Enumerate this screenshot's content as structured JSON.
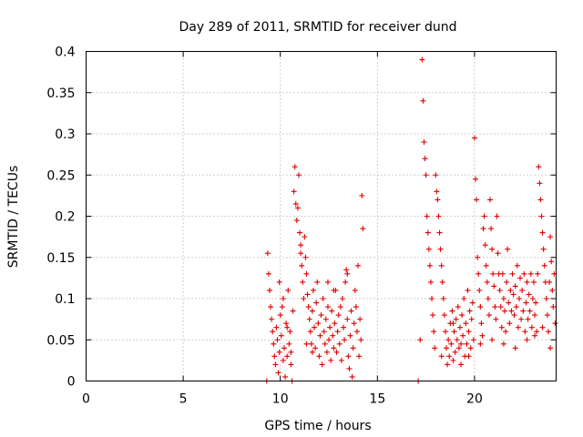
{
  "chart_data": {
    "type": "scatter",
    "title": "Day 289 of 2011, SRMTID for receiver dund",
    "xlabel": "GPS time / hours",
    "ylabel": "SRMTID / TECUs",
    "xlim": [
      0,
      24.2
    ],
    "ylim": [
      0,
      0.4
    ],
    "xticks": [
      0,
      5,
      10,
      15,
      20
    ],
    "xtick_labels": [
      "0",
      "5",
      "10",
      "15",
      "20"
    ],
    "yticks": [
      0,
      0.05,
      0.1,
      0.15,
      0.2,
      0.25,
      0.3,
      0.35,
      0.4
    ],
    "ytick_labels": [
      "0",
      "0.05",
      "0.1",
      "0.15",
      "0.2",
      "0.25",
      "0.3",
      "0.35",
      "0.4"
    ],
    "grid": true,
    "legend": "none",
    "marker": "plus",
    "series": [
      {
        "name": "SRMTID",
        "color": "#e00000",
        "points": [
          [
            9.3,
            0.0
          ],
          [
            9.35,
            0.155
          ],
          [
            9.4,
            0.13
          ],
          [
            9.45,
            0.11
          ],
          [
            9.5,
            0.09
          ],
          [
            9.55,
            0.075
          ],
          [
            9.6,
            0.06
          ],
          [
            9.65,
            0.045
          ],
          [
            9.7,
            0.03
          ],
          [
            9.75,
            0.02
          ],
          [
            9.8,
            0.065
          ],
          [
            9.85,
            0.05
          ],
          [
            9.9,
            0.01
          ],
          [
            9.95,
            0.035
          ],
          [
            10.0,
            0.08
          ],
          [
            10.05,
            0.055
          ],
          [
            10.1,
            0.09
          ],
          [
            10.15,
            0.025
          ],
          [
            10.2,
            0.04
          ],
          [
            10.25,
            0.005
          ],
          [
            10.3,
            0.07
          ],
          [
            10.35,
            0.03
          ],
          [
            10.4,
            0.11
          ],
          [
            10.45,
            0.045
          ],
          [
            10.5,
            0.06
          ],
          [
            10.55,
            0.02
          ],
          [
            10.6,
            0.0
          ],
          [
            10.65,
            0.085
          ],
          [
            10.7,
            0.23
          ],
          [
            10.75,
            0.26
          ],
          [
            10.8,
            0.215
          ],
          [
            10.85,
            0.195
          ],
          [
            10.9,
            0.21
          ],
          [
            10.95,
            0.25
          ],
          [
            11.0,
            0.18
          ],
          [
            11.05,
            0.165
          ],
          [
            11.1,
            0.14
          ],
          [
            11.15,
            0.12
          ],
          [
            11.2,
            0.1
          ],
          [
            11.25,
            0.175
          ],
          [
            11.3,
            0.15
          ],
          [
            11.35,
            0.13
          ],
          [
            11.4,
            0.105
          ],
          [
            11.45,
            0.09
          ],
          [
            11.5,
            0.075
          ],
          [
            11.55,
            0.06
          ],
          [
            11.6,
            0.045
          ],
          [
            11.65,
            0.085
          ],
          [
            11.7,
            0.11
          ],
          [
            11.75,
            0.065
          ],
          [
            11.8,
            0.04
          ],
          [
            11.85,
            0.095
          ],
          [
            11.9,
            0.12
          ],
          [
            11.95,
            0.07
          ],
          [
            12.0,
            0.03
          ],
          [
            12.05,
            0.055
          ],
          [
            12.1,
            0.08
          ],
          [
            12.15,
            0.02
          ],
          [
            12.2,
            0.1
          ],
          [
            12.25,
            0.06
          ],
          [
            12.3,
            0.045
          ],
          [
            12.35,
            0.075
          ],
          [
            12.4,
            0.035
          ],
          [
            12.45,
            0.09
          ],
          [
            12.5,
            0.05
          ],
          [
            12.55,
            0.065
          ],
          [
            12.6,
            0.025
          ],
          [
            12.65,
            0.085
          ],
          [
            12.7,
            0.055
          ],
          [
            12.75,
            0.04
          ],
          [
            12.8,
            0.07
          ],
          [
            12.85,
            0.11
          ],
          [
            12.9,
            0.035
          ],
          [
            12.95,
            0.06
          ],
          [
            13.0,
            0.08
          ],
          [
            13.05,
            0.045
          ],
          [
            13.1,
            0.09
          ],
          [
            13.15,
            0.025
          ],
          [
            13.2,
            0.1
          ],
          [
            13.25,
            0.065
          ],
          [
            13.3,
            0.05
          ],
          [
            13.35,
            0.12
          ],
          [
            13.4,
            0.135
          ],
          [
            13.45,
            0.075
          ],
          [
            13.5,
            0.03
          ],
          [
            13.55,
            0.015
          ],
          [
            13.6,
            0.055
          ],
          [
            13.65,
            0.085
          ],
          [
            13.7,
            0.005
          ],
          [
            13.75,
            0.04
          ],
          [
            13.8,
            0.07
          ],
          [
            13.85,
            0.11
          ],
          [
            13.9,
            0.09
          ],
          [
            13.95,
            0.06
          ],
          [
            14.0,
            0.14
          ],
          [
            14.05,
            0.03
          ],
          [
            14.1,
            0.075
          ],
          [
            14.15,
            0.05
          ],
          [
            14.2,
            0.225
          ],
          [
            14.25,
            0.185
          ],
          [
            9.95,
            0.12
          ],
          [
            10.15,
            0.1
          ],
          [
            10.35,
            0.065
          ],
          [
            10.55,
            0.035
          ],
          [
            11.05,
            0.155
          ],
          [
            11.35,
            0.045
          ],
          [
            11.65,
            0.035
          ],
          [
            12.45,
            0.12
          ],
          [
            12.75,
            0.11
          ],
          [
            13.45,
            0.13
          ],
          [
            17.1,
            0.0
          ],
          [
            17.2,
            0.05
          ],
          [
            17.3,
            0.39
          ],
          [
            17.35,
            0.34
          ],
          [
            17.4,
            0.29
          ],
          [
            17.45,
            0.27
          ],
          [
            17.5,
            0.25
          ],
          [
            17.55,
            0.2
          ],
          [
            17.6,
            0.18
          ],
          [
            17.65,
            0.16
          ],
          [
            17.7,
            0.14
          ],
          [
            17.75,
            0.12
          ],
          [
            17.8,
            0.1
          ],
          [
            17.85,
            0.08
          ],
          [
            17.9,
            0.06
          ],
          [
            17.95,
            0.04
          ],
          [
            18.0,
            0.25
          ],
          [
            18.05,
            0.23
          ],
          [
            18.1,
            0.22
          ],
          [
            18.15,
            0.2
          ],
          [
            18.2,
            0.18
          ],
          [
            18.25,
            0.16
          ],
          [
            18.3,
            0.14
          ],
          [
            18.35,
            0.12
          ],
          [
            18.4,
            0.1
          ],
          [
            18.45,
            0.08
          ],
          [
            18.5,
            0.06
          ],
          [
            18.55,
            0.04
          ],
          [
            18.6,
            0.02
          ],
          [
            18.65,
            0.05
          ],
          [
            18.7,
            0.03
          ],
          [
            18.75,
            0.07
          ],
          [
            18.8,
            0.045
          ],
          [
            18.85,
            0.085
          ],
          [
            18.9,
            0.025
          ],
          [
            18.95,
            0.06
          ],
          [
            19.0,
            0.035
          ],
          [
            19.05,
            0.075
          ],
          [
            19.1,
            0.05
          ],
          [
            19.15,
            0.09
          ],
          [
            19.2,
            0.04
          ],
          [
            19.25,
            0.065
          ],
          [
            19.3,
            0.02
          ],
          [
            19.35,
            0.08
          ],
          [
            19.4,
            0.055
          ],
          [
            19.45,
            0.1
          ],
          [
            19.5,
            0.03
          ],
          [
            19.55,
            0.07
          ],
          [
            19.6,
            0.045
          ],
          [
            19.65,
            0.11
          ],
          [
            19.7,
            0.06
          ],
          [
            19.75,
            0.085
          ],
          [
            19.8,
            0.04
          ],
          [
            19.85,
            0.075
          ],
          [
            19.9,
            0.095
          ],
          [
            19.95,
            0.05
          ],
          [
            20.0,
            0.295
          ],
          [
            20.05,
            0.245
          ],
          [
            20.1,
            0.22
          ],
          [
            20.15,
            0.15
          ],
          [
            20.2,
            0.13
          ],
          [
            20.25,
            0.11
          ],
          [
            20.3,
            0.09
          ],
          [
            20.35,
            0.07
          ],
          [
            20.4,
            0.055
          ],
          [
            20.45,
            0.185
          ],
          [
            20.5,
            0.2
          ],
          [
            20.55,
            0.165
          ],
          [
            20.6,
            0.14
          ],
          [
            20.65,
            0.12
          ],
          [
            20.7,
            0.1
          ],
          [
            20.75,
            0.08
          ],
          [
            20.8,
            0.22
          ],
          [
            20.85,
            0.185
          ],
          [
            20.9,
            0.16
          ],
          [
            20.95,
            0.13
          ],
          [
            21.0,
            0.115
          ],
          [
            21.05,
            0.09
          ],
          [
            21.1,
            0.075
          ],
          [
            21.15,
            0.2
          ],
          [
            21.2,
            0.155
          ],
          [
            21.25,
            0.13
          ],
          [
            21.3,
            0.11
          ],
          [
            21.35,
            0.09
          ],
          [
            21.4,
            0.065
          ],
          [
            21.45,
            0.13
          ],
          [
            21.5,
            0.1
          ],
          [
            21.55,
            0.085
          ],
          [
            21.6,
            0.06
          ],
          [
            21.65,
            0.12
          ],
          [
            21.7,
            0.16
          ],
          [
            21.75,
            0.095
          ],
          [
            21.8,
            0.07
          ],
          [
            21.85,
            0.11
          ],
          [
            21.9,
            0.085
          ],
          [
            21.95,
            0.13
          ],
          [
            22.0,
            0.105
          ],
          [
            22.05,
            0.08
          ],
          [
            22.1,
            0.115
          ],
          [
            22.15,
            0.09
          ],
          [
            22.2,
            0.14
          ],
          [
            22.25,
            0.065
          ],
          [
            22.3,
            0.1
          ],
          [
            22.35,
            0.125
          ],
          [
            22.4,
            0.075
          ],
          [
            22.45,
            0.11
          ],
          [
            22.5,
            0.085
          ],
          [
            22.55,
            0.13
          ],
          [
            22.6,
            0.06
          ],
          [
            22.65,
            0.095
          ],
          [
            22.7,
            0.12
          ],
          [
            22.75,
            0.075
          ],
          [
            22.8,
            0.105
          ],
          [
            22.85,
            0.085
          ],
          [
            22.9,
            0.13
          ],
          [
            22.95,
            0.065
          ],
          [
            23.0,
            0.1
          ],
          [
            23.05,
            0.12
          ],
          [
            23.1,
            0.08
          ],
          [
            23.15,
            0.095
          ],
          [
            23.2,
            0.06
          ],
          [
            23.25,
            0.13
          ],
          [
            23.3,
            0.26
          ],
          [
            23.35,
            0.24
          ],
          [
            23.4,
            0.22
          ],
          [
            23.45,
            0.2
          ],
          [
            23.5,
            0.18
          ],
          [
            23.55,
            0.16
          ],
          [
            23.6,
            0.14
          ],
          [
            23.65,
            0.12
          ],
          [
            23.7,
            0.1
          ],
          [
            23.75,
            0.08
          ],
          [
            23.8,
            0.06
          ],
          [
            23.85,
            0.12
          ],
          [
            23.9,
            0.175
          ],
          [
            23.95,
            0.145
          ],
          [
            24.0,
            0.11
          ],
          [
            24.05,
            0.09
          ],
          [
            24.1,
            0.13
          ],
          [
            24.15,
            0.07
          ],
          [
            18.3,
            0.03
          ],
          [
            18.9,
            0.07
          ],
          [
            19.3,
            0.045
          ],
          [
            19.7,
            0.03
          ],
          [
            20.3,
            0.045
          ],
          [
            20.9,
            0.05
          ],
          [
            21.5,
            0.045
          ],
          [
            22.1,
            0.04
          ],
          [
            22.7,
            0.05
          ],
          [
            23.1,
            0.055
          ],
          [
            23.5,
            0.065
          ],
          [
            23.9,
            0.04
          ]
        ]
      }
    ]
  }
}
